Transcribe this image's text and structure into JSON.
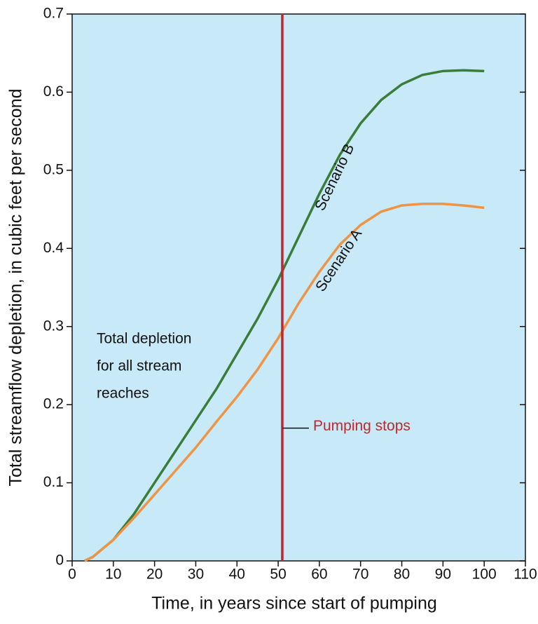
{
  "chart_data": {
    "type": "line",
    "x_label": "Time, in years since start of pumping",
    "y_label": "Total streamflow depletion, in cubic feet per second",
    "xlim": [
      0,
      110
    ],
    "ylim": [
      0,
      0.7
    ],
    "xticks": [
      0,
      10,
      20,
      30,
      40,
      50,
      60,
      70,
      80,
      90,
      100,
      110
    ],
    "yticks": [
      0,
      0.1,
      0.2,
      0.3,
      0.4,
      0.5,
      0.6,
      0.7
    ],
    "x": [
      3,
      5,
      10,
      15,
      20,
      25,
      30,
      35,
      40,
      45,
      50,
      55,
      60,
      65,
      70,
      75,
      80,
      85,
      90,
      95,
      100
    ],
    "series": [
      {
        "name": "Scenario B",
        "color": "#3a7d3a",
        "values": [
          0,
          0.005,
          0.027,
          0.06,
          0.1,
          0.14,
          0.18,
          0.22,
          0.265,
          0.31,
          0.36,
          0.415,
          0.47,
          0.52,
          0.56,
          0.59,
          0.61,
          0.622,
          0.627,
          0.628,
          0.627
        ]
      },
      {
        "name": "Scenario A",
        "color": "#ee9444",
        "values": [
          0,
          0.005,
          0.027,
          0.055,
          0.085,
          0.115,
          0.145,
          0.178,
          0.21,
          0.245,
          0.285,
          0.33,
          0.37,
          0.405,
          0.43,
          0.447,
          0.455,
          0.457,
          0.457,
          0.455,
          0.452
        ]
      }
    ],
    "vline": {
      "x": 51,
      "label": "Pumping stops",
      "color": "#c0272d"
    },
    "note": [
      "Total depletion",
      "for all stream",
      "reaches"
    ],
    "background": "#c8e9f8"
  }
}
